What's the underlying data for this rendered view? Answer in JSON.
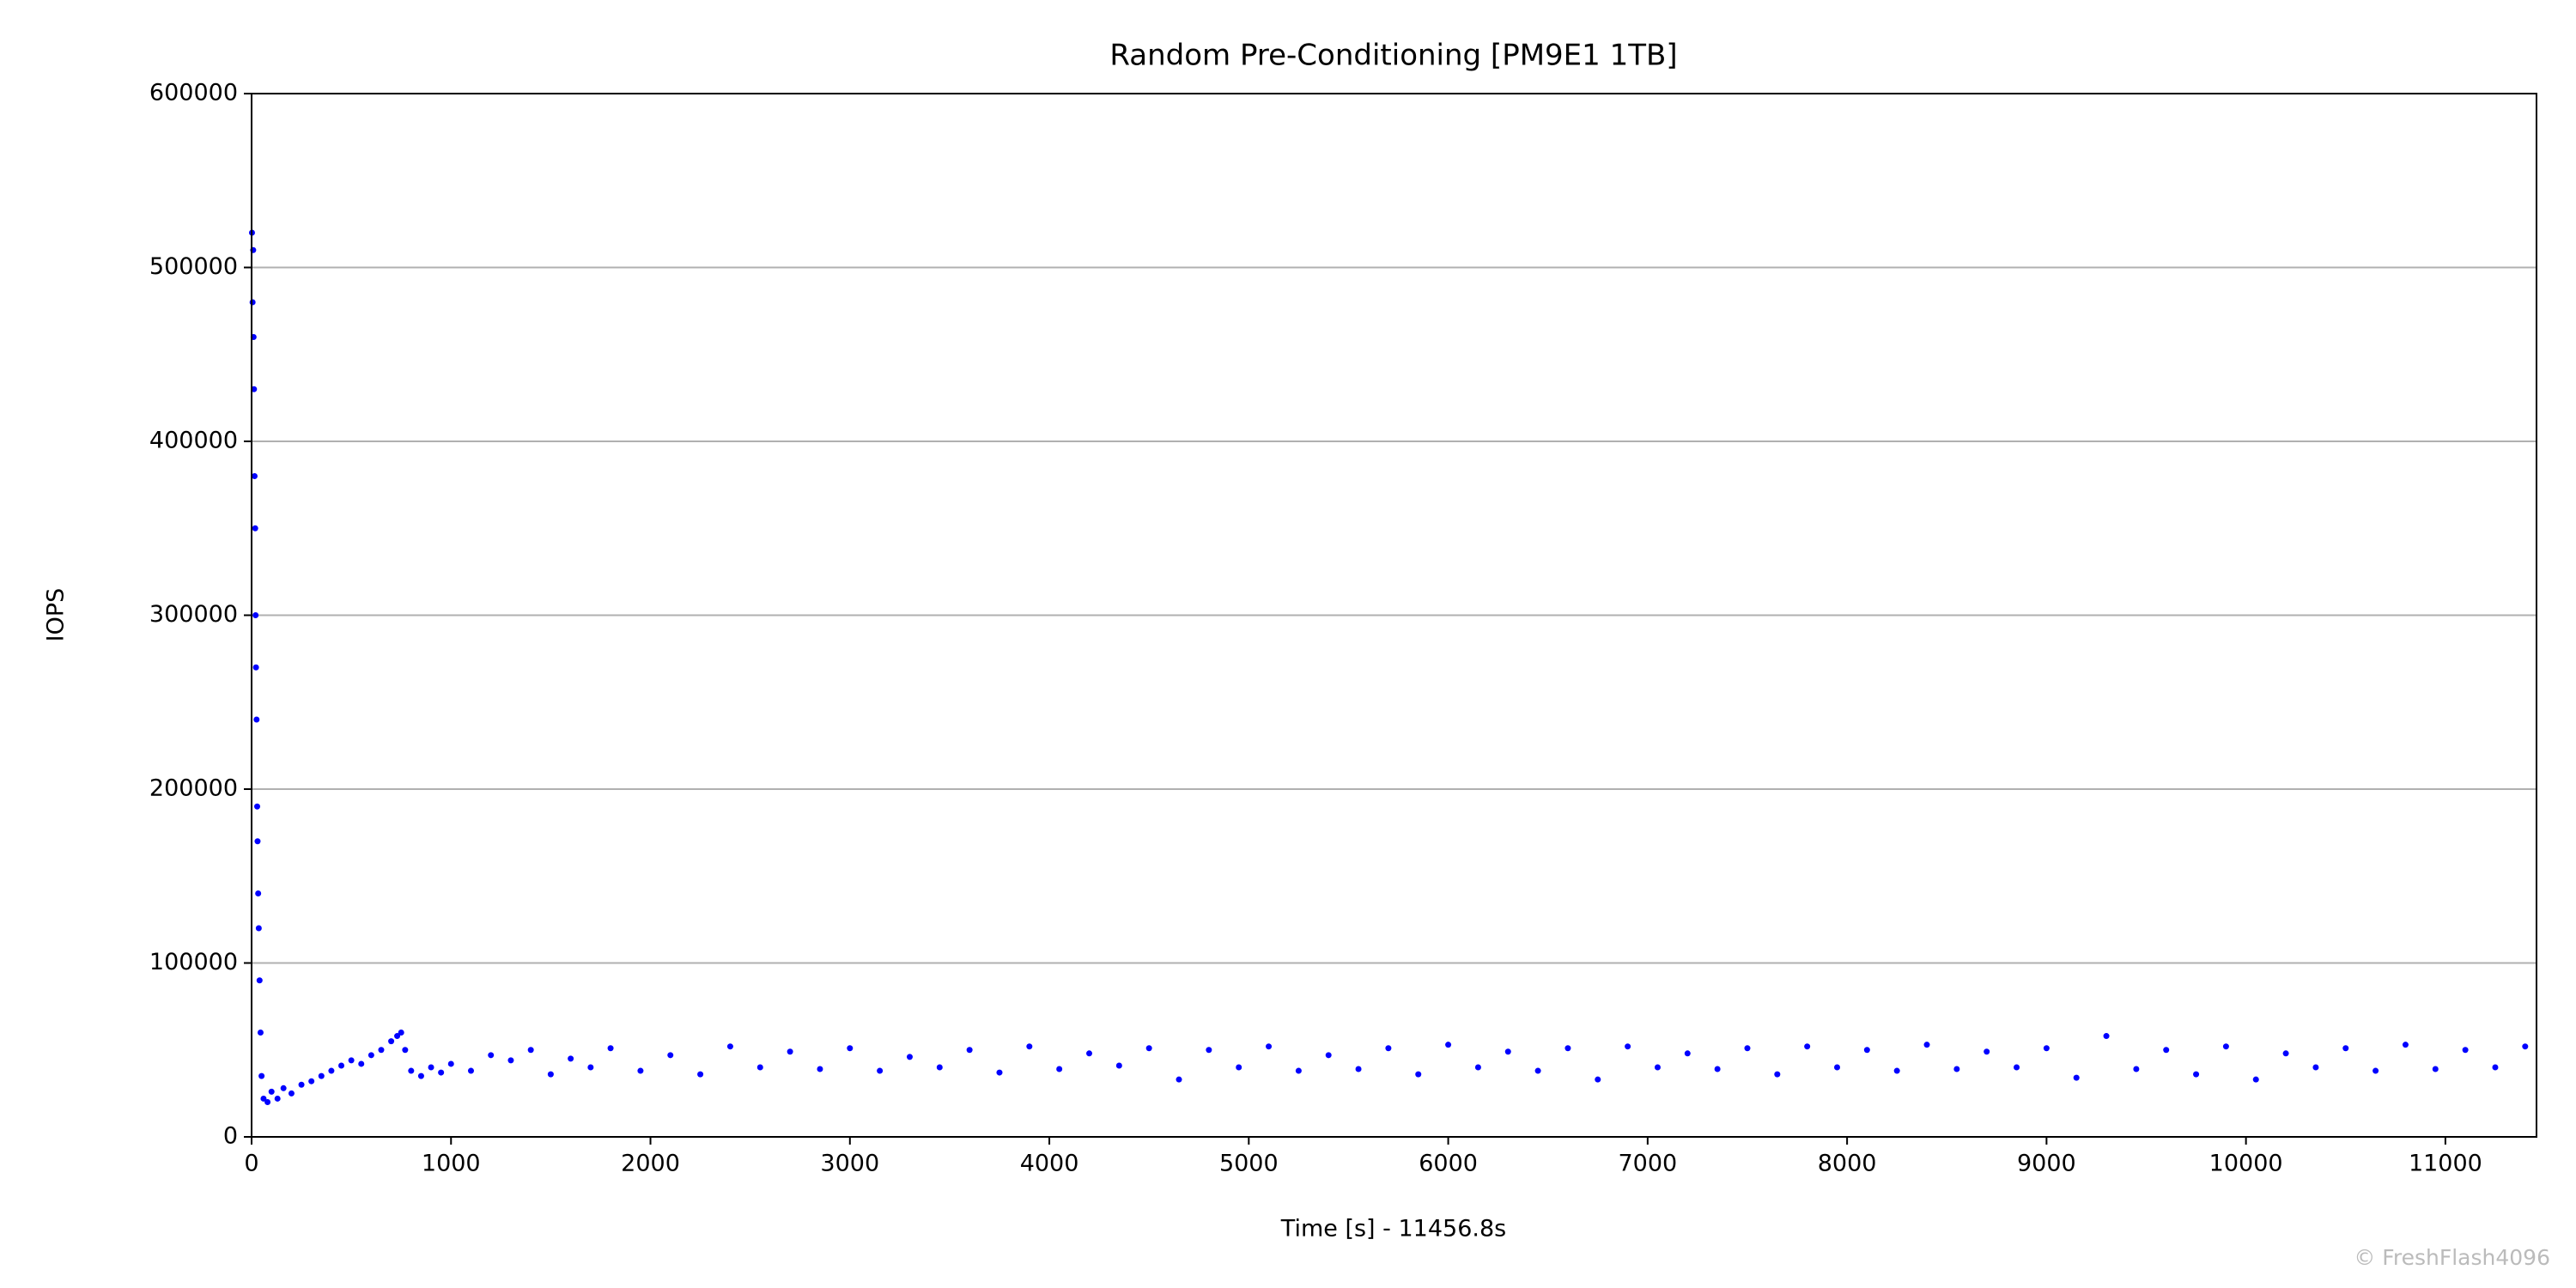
{
  "chart_data": {
    "type": "scatter",
    "title": "Random Pre-Conditioning [PM9E1 1TB]",
    "x_label": "Time [s] - 11456.8s",
    "y_label": "IOPS",
    "watermark": "© FreshFlash4096",
    "color": "#0000ff",
    "grid": "y",
    "xlim": [
      0,
      11456.8
    ],
    "ylim": [
      0,
      600000
    ],
    "xticks": [
      0,
      1000,
      2000,
      3000,
      4000,
      5000,
      6000,
      7000,
      8000,
      9000,
      10000,
      11000
    ],
    "yticks": [
      0,
      100000,
      200000,
      300000,
      400000,
      500000,
      600000
    ],
    "x": [
      2,
      5,
      8,
      10,
      12,
      15,
      18,
      20,
      22,
      25,
      28,
      30,
      33,
      36,
      40,
      45,
      50,
      60,
      80,
      100,
      130,
      160,
      200,
      250,
      300,
      350,
      400,
      450,
      500,
      550,
      600,
      650,
      700,
      730,
      750,
      770,
      800,
      850,
      900,
      950,
      1000,
      1100,
      1200,
      1300,
      1400,
      1500,
      1600,
      1700,
      1800,
      2100,
      2400,
      2700,
      3000,
      3300,
      3600,
      3900,
      4200,
      4500,
      4800,
      5100,
      5400,
      5700,
      6000,
      6300,
      6600,
      6900,
      7200,
      7500,
      7800,
      8100,
      8400,
      8700,
      9000,
      9300,
      9600,
      9900,
      10200,
      10500,
      10800,
      11100,
      11400,
      1950,
      2250,
      2550,
      2850,
      3150,
      3450,
      3750,
      4050,
      4350,
      4650,
      4950,
      5250,
      5550,
      5850,
      6150,
      6450,
      6750,
      7050,
      7350,
      7650,
      7950,
      8250,
      8550,
      8850,
      9150,
      9450,
      9750,
      10050,
      10350,
      10650,
      10950,
      11250
    ],
    "values": [
      520000,
      480000,
      510000,
      460000,
      430000,
      380000,
      350000,
      300000,
      270000,
      240000,
      190000,
      170000,
      140000,
      120000,
      90000,
      60000,
      35000,
      22000,
      20000,
      26000,
      22000,
      28000,
      25000,
      30000,
      32000,
      35000,
      38000,
      41000,
      44000,
      42000,
      47000,
      50000,
      55000,
      58000,
      60000,
      50000,
      38000,
      35000,
      40000,
      37000,
      42000,
      38000,
      47000,
      44000,
      50000,
      36000,
      45000,
      40000,
      51000,
      47000,
      52000,
      49000,
      51000,
      46000,
      50000,
      52000,
      48000,
      51000,
      50000,
      52000,
      47000,
      51000,
      53000,
      49000,
      51000,
      52000,
      48000,
      51000,
      52000,
      50000,
      53000,
      49000,
      51000,
      58000,
      50000,
      52000,
      48000,
      51000,
      53000,
      50000,
      52000,
      38000,
      36000,
      40000,
      39000,
      38000,
      40000,
      37000,
      39000,
      41000,
      33000,
      40000,
      38000,
      39000,
      36000,
      40000,
      38000,
      33000,
      40000,
      39000,
      36000,
      40000,
      38000,
      39000,
      40000,
      34000,
      39000,
      36000,
      33000,
      40000,
      38000,
      39000,
      40000
    ]
  }
}
